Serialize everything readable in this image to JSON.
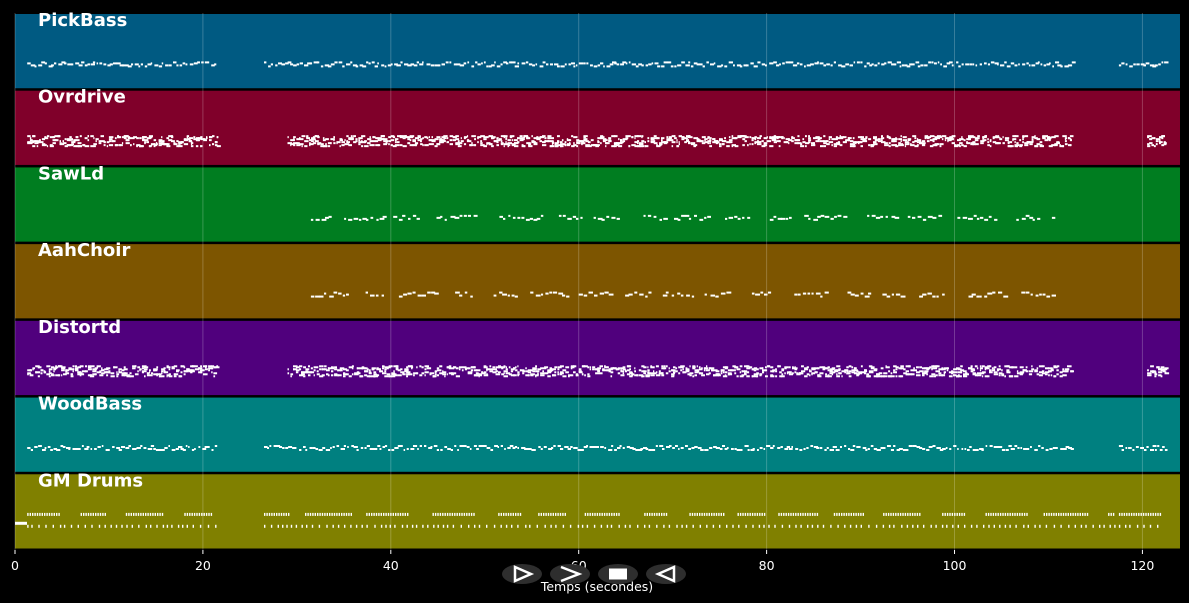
{
  "tracks": [
    {
      "name": "PickBass",
      "color": "#005a82",
      "note_style": "sparse"
    },
    {
      "name": "Ovrdrive",
      "color": "#80002a",
      "note_style": "dense"
    },
    {
      "name": "SawLd",
      "color": "#007d20",
      "note_style": "melody"
    },
    {
      "name": "AahChoir",
      "color": "#7d5500",
      "note_style": "melody"
    },
    {
      "name": "Distortd",
      "color": "#50007d",
      "note_style": "dense"
    },
    {
      "name": "WoodBass",
      "color": "#008080",
      "note_style": "sparse"
    },
    {
      "name": "GM Drums",
      "color": "#808000",
      "note_style": "drums"
    }
  ],
  "axis": {
    "xlabel": "Temps (secondes)",
    "xlim": [
      0,
      124
    ],
    "ticks": [
      0,
      20,
      40,
      60,
      80,
      100,
      120
    ],
    "tick_labels": [
      "0",
      "20",
      "40",
      "60",
      "80",
      "100",
      "120"
    ]
  },
  "segments": {
    "bass": [
      [
        1.3,
        21.5
      ],
      [
        26.5,
        112.5
      ],
      [
        117.5,
        122.5
      ]
    ],
    "guitar": [
      [
        1.3,
        21.5
      ],
      [
        29.0,
        112.5
      ],
      [
        120.5,
        122.5
      ]
    ],
    "lead": [
      [
        31.5,
        110.5
      ]
    ],
    "drums": [
      [
        1.3,
        21.5
      ],
      [
        26.5,
        117.0
      ],
      [
        117.5,
        122.0
      ]
    ]
  },
  "controls": [
    {
      "name": "rewind-button",
      "icon": "rewind-icon"
    },
    {
      "name": "play-button",
      "icon": "play-icon"
    },
    {
      "name": "stop-button",
      "icon": "stop-icon"
    },
    {
      "name": "forward-button",
      "icon": "forward-icon"
    }
  ],
  "colors": {
    "background": "#000000",
    "note": "#ffffff",
    "grid": "#ffffff"
  }
}
